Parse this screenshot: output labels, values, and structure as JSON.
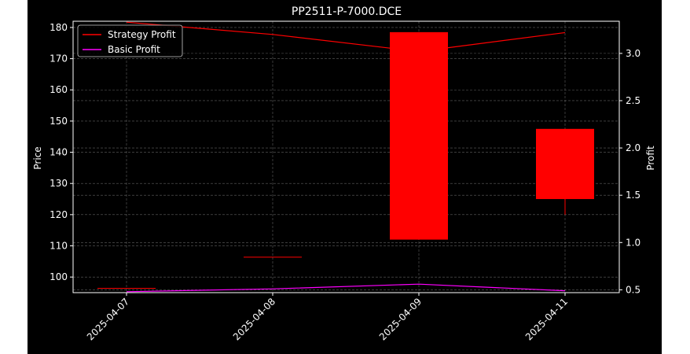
{
  "chart_data": {
    "type": "candlestick",
    "title": "PP2511-P-7000.DCE",
    "xlabel": "",
    "ylabel": "Price",
    "ylabel_right": "Profit",
    "categories": [
      "2025-04-07",
      "2025-04-08",
      "2025-04-09",
      "2025-04-11"
    ],
    "candles": [
      {
        "date": "2025-04-07",
        "open": 96.5,
        "high": 96.5,
        "low": 96.5,
        "close": 96.5
      },
      {
        "date": "2025-04-08",
        "open": 106.5,
        "high": 106.5,
        "low": 106.5,
        "close": 106.5
      },
      {
        "date": "2025-04-09",
        "open": 178.5,
        "high": 178.5,
        "low": 112.0,
        "close": 112.0
      },
      {
        "date": "2025-04-11",
        "open": 147.5,
        "high": 147.5,
        "low": 120.0,
        "close": 125.0
      }
    ],
    "ylim": [
      95,
      182
    ],
    "yticks": [
      100,
      110,
      120,
      130,
      140,
      150,
      160,
      170,
      180
    ],
    "ylim_right": [
      0.47,
      3.34
    ],
    "yticks_right": [
      0.5,
      1.0,
      1.5,
      2.0,
      2.5,
      3.0
    ],
    "series": [
      {
        "name": "Strategy Profit",
        "color": "#ff0000",
        "values": [
          3.33,
          3.2,
          3.02,
          3.22
        ]
      },
      {
        "name": "Basic Profit",
        "color": "#ff00ff",
        "values": [
          0.48,
          0.51,
          0.56,
          0.49
        ]
      }
    ],
    "legend_position": "top-left",
    "grid": true,
    "candle_color": "#ff0000"
  }
}
